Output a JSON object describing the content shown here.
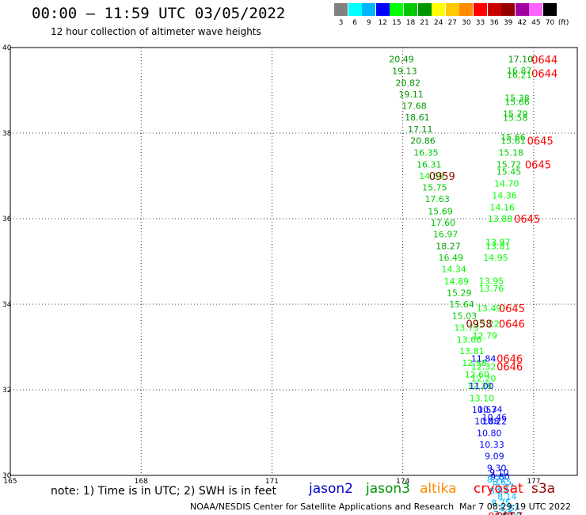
{
  "header": {
    "title": "00:00 – 11:59 UTC 03/05/2022",
    "subtitle": "12 hour collection of altimeter wave heights"
  },
  "legend": {
    "swatches": [
      {
        "color": "#808080",
        "label": "3"
      },
      {
        "color": "#00ffff",
        "label": "6"
      },
      {
        "color": "#00b4ff",
        "label": "9"
      },
      {
        "color": "#0000ff",
        "label": "12"
      },
      {
        "color": "#00ff00",
        "label": "15"
      },
      {
        "color": "#00c800",
        "label": "18"
      },
      {
        "color": "#009600",
        "label": "21"
      },
      {
        "color": "#ffff00",
        "label": "24"
      },
      {
        "color": "#ffc800",
        "label": "27"
      },
      {
        "color": "#ff8c00",
        "label": "30"
      },
      {
        "color": "#ff0000",
        "label": "33"
      },
      {
        "color": "#c80000",
        "label": "36"
      },
      {
        "color": "#960000",
        "label": "39"
      },
      {
        "color": "#a000a0",
        "label": "42"
      },
      {
        "color": "#ff64ff",
        "label": "45"
      },
      {
        "color": "#000000",
        "label": "70"
      }
    ],
    "unit": "(ft)"
  },
  "map": {
    "lon_range": [
      165,
      178
    ],
    "lat_range": [
      30,
      40
    ],
    "x_ticks": [
      "165",
      "168",
      "171",
      "174",
      "177"
    ],
    "y_ticks": [
      "30",
      "32",
      "34",
      "36",
      "38",
      "40"
    ],
    "grid": "dotted",
    "swh_labels": [
      {
        "lon": 173.97,
        "lat": 39.73,
        "text": "20.49",
        "color": "#009600"
      },
      {
        "lon": 174.04,
        "lat": 39.45,
        "text": "19.13",
        "color": "#009600"
      },
      {
        "lon": 174.12,
        "lat": 39.18,
        "text": "20.82",
        "color": "#009600"
      },
      {
        "lon": 174.19,
        "lat": 38.91,
        "text": "19.11",
        "color": "#009600"
      },
      {
        "lon": 174.26,
        "lat": 38.64,
        "text": "17.68",
        "color": "#009600"
      },
      {
        "lon": 174.33,
        "lat": 38.37,
        "text": "18.61",
        "color": "#009600"
      },
      {
        "lon": 174.4,
        "lat": 38.09,
        "text": "17.11",
        "color": "#009600"
      },
      {
        "lon": 174.46,
        "lat": 37.82,
        "text": "20.86",
        "color": "#009600"
      },
      {
        "lon": 174.53,
        "lat": 37.55,
        "text": "16.35",
        "color": "#00c800"
      },
      {
        "lon": 174.6,
        "lat": 37.27,
        "text": "16.31",
        "color": "#00c800"
      },
      {
        "lon": 174.66,
        "lat": 37.0,
        "text": "14.59",
        "color": "#00ff00"
      },
      {
        "lon": 174.73,
        "lat": 36.73,
        "text": "15.75",
        "color": "#00c800"
      },
      {
        "lon": 174.79,
        "lat": 36.46,
        "text": "17.63",
        "color": "#00c800"
      },
      {
        "lon": 174.86,
        "lat": 36.18,
        "text": "15.69",
        "color": "#00c800"
      },
      {
        "lon": 174.92,
        "lat": 35.91,
        "text": "17.60",
        "color": "#00c800"
      },
      {
        "lon": 174.98,
        "lat": 35.64,
        "text": "16.97",
        "color": "#00c800"
      },
      {
        "lon": 175.04,
        "lat": 35.36,
        "text": "18.27",
        "color": "#009600"
      },
      {
        "lon": 175.1,
        "lat": 35.09,
        "text": "16.49",
        "color": "#00c800"
      },
      {
        "lon": 175.17,
        "lat": 34.82,
        "text": "14.34",
        "color": "#00ff00"
      },
      {
        "lon": 175.23,
        "lat": 34.54,
        "text": "14.89",
        "color": "#00ff00"
      },
      {
        "lon": 175.29,
        "lat": 34.27,
        "text": "15.29",
        "color": "#00c800"
      },
      {
        "lon": 175.35,
        "lat": 34.0,
        "text": "15.64",
        "color": "#00c800"
      },
      {
        "lon": 175.41,
        "lat": 33.73,
        "text": "15.03",
        "color": "#00c800"
      },
      {
        "lon": 175.46,
        "lat": 33.45,
        "text": "13.73",
        "color": "#00ff00"
      },
      {
        "lon": 175.52,
        "lat": 33.18,
        "text": "13.66",
        "color": "#00ff00"
      },
      {
        "lon": 175.58,
        "lat": 32.91,
        "text": "13.81",
        "color": "#00ff00"
      },
      {
        "lon": 175.64,
        "lat": 32.63,
        "text": "12.58",
        "color": "#00ff00"
      },
      {
        "lon": 175.7,
        "lat": 32.36,
        "text": "12.60",
        "color": "#00ff00"
      },
      {
        "lon": 175.76,
        "lat": 32.09,
        "text": "12.28",
        "color": "#00ff00"
      },
      {
        "lon": 175.81,
        "lat": 31.81,
        "text": "13.10",
        "color": "#00ff00"
      },
      {
        "lon": 175.87,
        "lat": 31.54,
        "text": "10.57",
        "color": "#0000ff"
      },
      {
        "lon": 175.93,
        "lat": 31.27,
        "text": "10.88",
        "color": "#0000ff"
      },
      {
        "lon": 175.98,
        "lat": 30.99,
        "text": "10.80",
        "color": "#0000ff"
      },
      {
        "lon": 176.04,
        "lat": 30.72,
        "text": "10.33",
        "color": "#0000ff"
      },
      {
        "lon": 176.1,
        "lat": 30.45,
        "text": "9.09",
        "color": "#0000ff"
      },
      {
        "lon": 176.15,
        "lat": 30.18,
        "text": "9.30",
        "color": "#0000ff"
      },
      {
        "lon": 176.21,
        "lat": 30.07,
        "text": "9.10",
        "color": "#0000ff"
      },
      {
        "lon": 176.23,
        "lat": 29.97,
        "text": "9.80",
        "color": "#0000ff"
      },
      {
        "lon": 176.27,
        "lat": 29.85,
        "text": "8.65",
        "color": "#00b4ff"
      },
      {
        "lon": 176.33,
        "lat": 29.73,
        "text": "8.47",
        "color": "#00b4ff"
      },
      {
        "lon": 176.39,
        "lat": 29.51,
        "text": "8.14",
        "color": "#00b4ff"
      },
      {
        "lon": 176.44,
        "lat": 29.24,
        "text": "8.87",
        "color": "#00b4ff"
      },
      {
        "lon": 176.5,
        "lat": 29.06,
        "text": "7.80",
        "color": "#00b4ff"
      },
      {
        "lon": 176.55,
        "lat": 28.74,
        "text": "7.76",
        "color": "#00b4ff"
      },
      {
        "lon": 176.7,
        "lat": 39.73,
        "text": "17.10",
        "color": "#009600"
      },
      {
        "lon": 176.67,
        "lat": 39.46,
        "text": "16.87",
        "color": "#00c800"
      },
      {
        "lon": 176.67,
        "lat": 39.36,
        "text": "16.21",
        "color": "#00c800"
      },
      {
        "lon": 176.62,
        "lat": 38.82,
        "text": "15.38",
        "color": "#00c800"
      },
      {
        "lon": 176.62,
        "lat": 38.73,
        "text": "15.66",
        "color": "#00c800"
      },
      {
        "lon": 176.58,
        "lat": 38.45,
        "text": "15.79",
        "color": "#00c800"
      },
      {
        "lon": 176.58,
        "lat": 38.36,
        "text": "15.58",
        "color": "#00c800"
      },
      {
        "lon": 176.53,
        "lat": 37.91,
        "text": "15.66",
        "color": "#00c800"
      },
      {
        "lon": 176.53,
        "lat": 37.82,
        "text": "15.61",
        "color": "#00c800"
      },
      {
        "lon": 176.48,
        "lat": 37.55,
        "text": "15.18",
        "color": "#00c800"
      },
      {
        "lon": 176.43,
        "lat": 37.27,
        "text": "15.72",
        "color": "#00c800"
      },
      {
        "lon": 176.43,
        "lat": 37.1,
        "text": "15.45",
        "color": "#00c800"
      },
      {
        "lon": 176.38,
        "lat": 36.82,
        "text": "14.70",
        "color": "#00ff00"
      },
      {
        "lon": 176.33,
        "lat": 36.55,
        "text": "14.36",
        "color": "#00ff00"
      },
      {
        "lon": 176.28,
        "lat": 36.27,
        "text": "14.16",
        "color": "#00ff00"
      },
      {
        "lon": 176.23,
        "lat": 36.0,
        "text": "13.88",
        "color": "#00ff00"
      },
      {
        "lon": 176.18,
        "lat": 35.45,
        "text": "13.97",
        "color": "#00ff00"
      },
      {
        "lon": 176.18,
        "lat": 35.36,
        "text": "13.81",
        "color": "#00ff00"
      },
      {
        "lon": 176.13,
        "lat": 35.09,
        "text": "14.95",
        "color": "#00ff00"
      },
      {
        "lon": 176.03,
        "lat": 34.55,
        "text": "13.95",
        "color": "#00ff00"
      },
      {
        "lon": 176.03,
        "lat": 34.37,
        "text": "13.76",
        "color": "#00ff00"
      },
      {
        "lon": 175.98,
        "lat": 33.91,
        "text": "13.49",
        "color": "#00ff00"
      },
      {
        "lon": 175.93,
        "lat": 33.55,
        "text": "13.22",
        "color": "#00ff00"
      },
      {
        "lon": 175.88,
        "lat": 33.27,
        "text": "12.79",
        "color": "#00ff00"
      },
      {
        "lon": 175.85,
        "lat": 32.73,
        "text": "11.84",
        "color": "#0000ff"
      },
      {
        "lon": 175.85,
        "lat": 32.55,
        "text": "12.32",
        "color": "#00ff00"
      },
      {
        "lon": 175.85,
        "lat": 32.27,
        "text": "12.20",
        "color": "#00ff00"
      },
      {
        "lon": 175.8,
        "lat": 32.09,
        "text": "11.00",
        "color": "#0000ff"
      },
      {
        "lon": 176.0,
        "lat": 31.55,
        "text": "10.34",
        "color": "#0000ff"
      },
      {
        "lon": 176.1,
        "lat": 31.36,
        "text": "10.46",
        "color": "#0000ff"
      },
      {
        "lon": 176.1,
        "lat": 31.27,
        "text": "10.22",
        "color": "#0000ff"
      },
      {
        "lon": 176.15,
        "lat": 29.91,
        "text": "8.77",
        "color": "#00b4ff"
      },
      {
        "lon": 176.2,
        "lat": 29.64,
        "text": "8.85",
        "color": "#00b4ff"
      },
      {
        "lon": 176.25,
        "lat": 29.36,
        "text": "8.75",
        "color": "#00b4ff"
      },
      {
        "lon": 176.3,
        "lat": 29.09,
        "text": "7.43",
        "color": "#00b4ff"
      }
    ],
    "time_labels": [
      {
        "lon": 177.25,
        "lat": 39.72,
        "text": "0644",
        "color": "#ff0000"
      },
      {
        "lon": 177.25,
        "lat": 39.4,
        "text": "0644",
        "color": "#ff0000"
      },
      {
        "lon": 177.15,
        "lat": 37.82,
        "text": "0645",
        "color": "#ff0000"
      },
      {
        "lon": 177.1,
        "lat": 37.27,
        "text": "0645",
        "color": "#ff0000"
      },
      {
        "lon": 176.85,
        "lat": 36.0,
        "text": "0645",
        "color": "#ff0000"
      },
      {
        "lon": 176.5,
        "lat": 33.91,
        "text": "0645",
        "color": "#ff0000"
      },
      {
        "lon": 176.5,
        "lat": 33.55,
        "text": "0646",
        "color": "#ff0000"
      },
      {
        "lon": 176.45,
        "lat": 32.73,
        "text": "0646",
        "color": "#ff0000"
      },
      {
        "lon": 176.45,
        "lat": 32.55,
        "text": "0646",
        "color": "#ff0000"
      },
      {
        "lon": 174.9,
        "lat": 37.0,
        "text": "0959",
        "color": "#960000"
      },
      {
        "lon": 175.75,
        "lat": 33.55,
        "text": "0958",
        "color": "#960000"
      },
      {
        "lon": 176.25,
        "lat": 29.05,
        "text": "0647",
        "color": "#ff0000"
      },
      {
        "lon": 176.45,
        "lat": 29.05,
        "text": "0957",
        "color": "#960000"
      },
      {
        "lon": 176.55,
        "lat": 28.9,
        "text": "0956",
        "color": "#960000"
      }
    ]
  },
  "footer": {
    "note": "note:  1) Time is in UTC;  2) SWH is in feet",
    "satellites": [
      {
        "name": "jason2",
        "color": "#0000cc"
      },
      {
        "name": "jason3",
        "color": "#009600"
      },
      {
        "name": "altika",
        "color": "#ff8c00"
      },
      {
        "name": "cryosat",
        "color": "#ff0000"
      },
      {
        "name": "s3a",
        "color": "#960000"
      }
    ],
    "credit": "NOAA/NESDIS Center for Satellite Applications and Research",
    "timestamp": "Mar  7 08:29:19 UTC 2022"
  }
}
